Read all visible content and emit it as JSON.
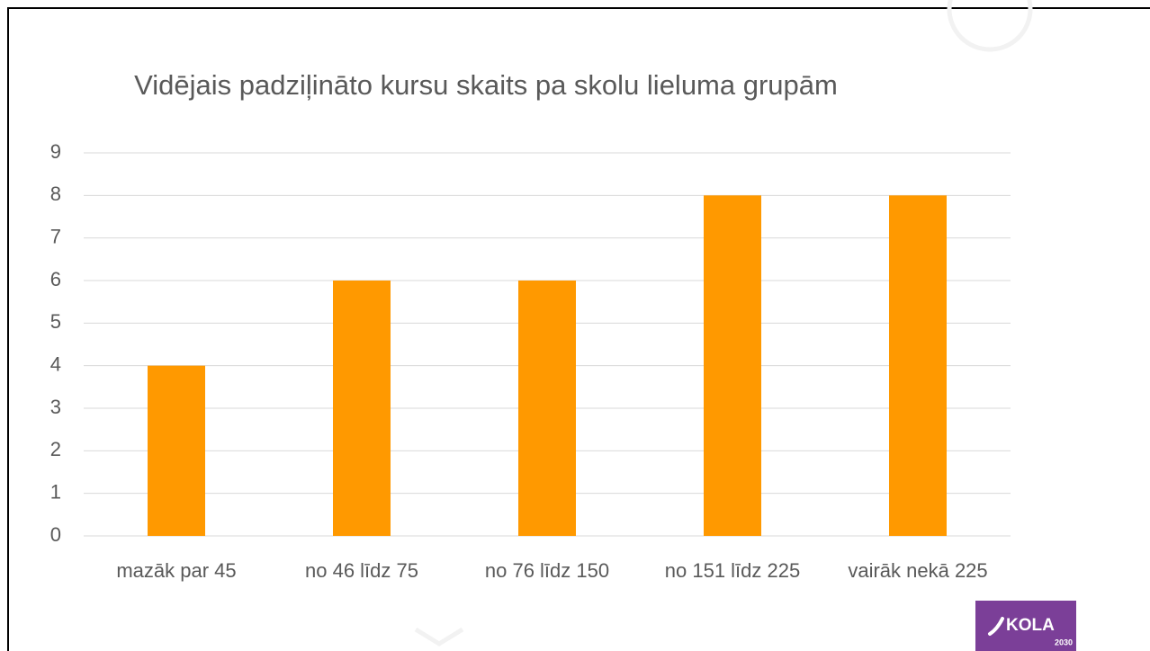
{
  "chart_data": {
    "type": "bar",
    "title": "Vidējais padziļināto kursu skaits pa skolu lieluma grupām",
    "categories": [
      "mazāk par 45",
      "no 46 līdz 75",
      "no 76 līdz 150",
      "no 151 līdz 225",
      "vairāk nekā 225"
    ],
    "values": [
      4,
      6,
      6,
      8,
      8
    ],
    "color": "#ff9900",
    "ylim": [
      0,
      9
    ],
    "yticks": [
      0,
      1,
      2,
      3,
      4,
      5,
      6,
      7,
      8,
      9
    ],
    "grid": true
  },
  "logo": {
    "name": "KOLA",
    "year": "2030"
  }
}
